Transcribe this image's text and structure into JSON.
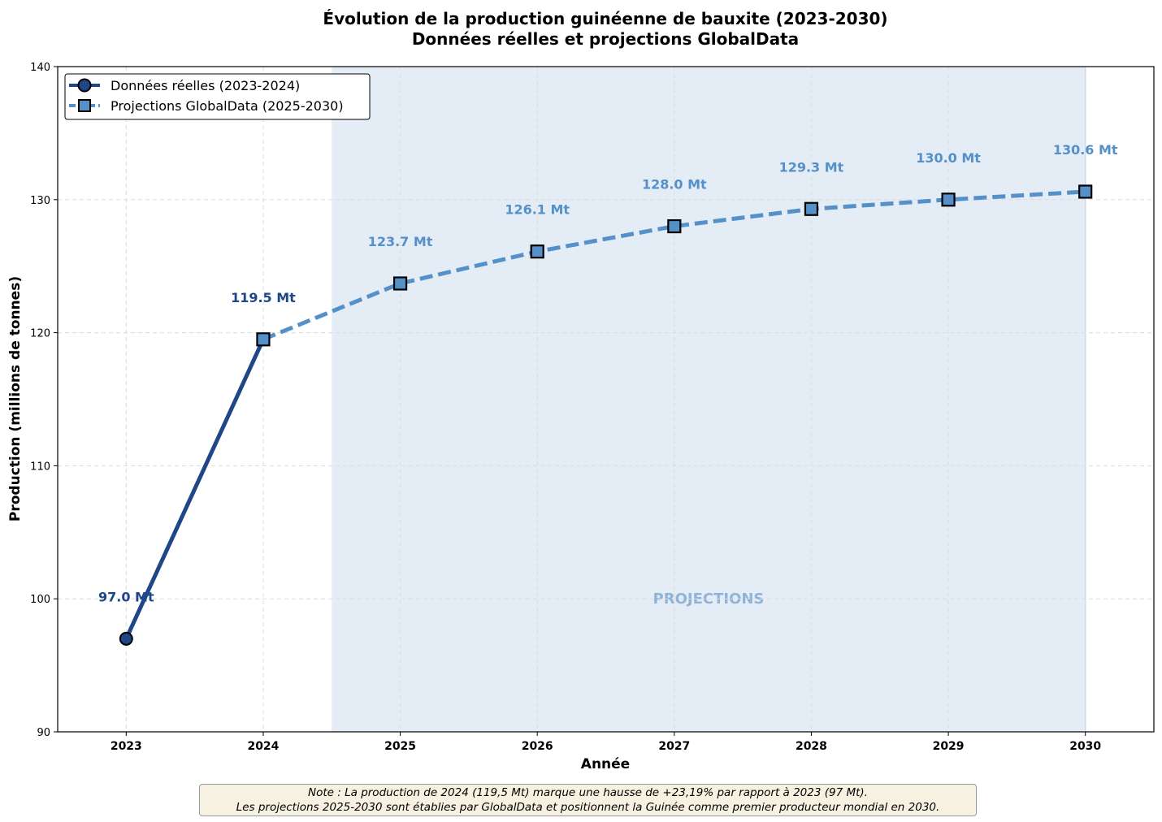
{
  "chart_data": {
    "type": "line",
    "title": "Évolution de la production guinéenne de bauxite (2023-2030)",
    "subtitle": "Données réelles et projections GlobalData",
    "xlabel": "Année",
    "ylabel": "Production (millions de tonnes)",
    "xlim": [
      2022.5,
      2030.5
    ],
    "ylim": [
      90,
      140
    ],
    "x_ticks": [
      "2023",
      "2024",
      "2025",
      "2026",
      "2027",
      "2028",
      "2029",
      "2030"
    ],
    "y_ticks": [
      90,
      100,
      110,
      120,
      130,
      140
    ],
    "grid": true,
    "legend_position": "top-left",
    "series": [
      {
        "name": "Données réelles (2023-2024)",
        "style": "solid",
        "marker": "circle",
        "color": "#1f4788",
        "x": [
          2023,
          2024
        ],
        "values": [
          97.0,
          119.5
        ]
      },
      {
        "name": "Projections GlobalData (2025-2030)",
        "style": "dashed",
        "marker": "square",
        "color": "#5590c8",
        "x": [
          2024,
          2025,
          2026,
          2027,
          2028,
          2029,
          2030
        ],
        "values": [
          119.5,
          123.7,
          126.1,
          128.0,
          129.3,
          130.0,
          130.6
        ]
      }
    ],
    "data_labels": [
      {
        "x": 2023,
        "value": 97.0,
        "text": "97.0 Mt",
        "color": "#1f4788"
      },
      {
        "x": 2024,
        "value": 119.5,
        "text": "119.5 Mt",
        "color": "#1f4788"
      },
      {
        "x": 2025,
        "value": 123.7,
        "text": "123.7 Mt",
        "color": "#5590c8"
      },
      {
        "x": 2026,
        "value": 126.1,
        "text": "126.1 Mt",
        "color": "#5590c8"
      },
      {
        "x": 2027,
        "value": 128.0,
        "text": "128.0 Mt",
        "color": "#5590c8"
      },
      {
        "x": 2028,
        "value": 129.3,
        "text": "129.3 Mt",
        "color": "#5590c8"
      },
      {
        "x": 2029,
        "value": 130.0,
        "text": "130.0 Mt",
        "color": "#5590c8"
      },
      {
        "x": 2030,
        "value": 130.6,
        "text": "130.6 Mt",
        "color": "#5590c8"
      }
    ],
    "shaded_region": {
      "x_start": 2024.5,
      "x_end": 2030,
      "color": "#e4edf6",
      "label": "PROJECTIONS",
      "label_color": "#8fb3d9",
      "label_x": 2027.25,
      "label_y": 100
    },
    "annotations": []
  },
  "note": {
    "line1": "Note : La production de 2024 (119,5 Mt) marque une hausse de +23,19% par rapport à 2023 (97 Mt).",
    "line2": "Les projections 2025-2030 sont établies par GlobalData et positionnent la Guinée comme premier producteur mondial en 2030."
  }
}
